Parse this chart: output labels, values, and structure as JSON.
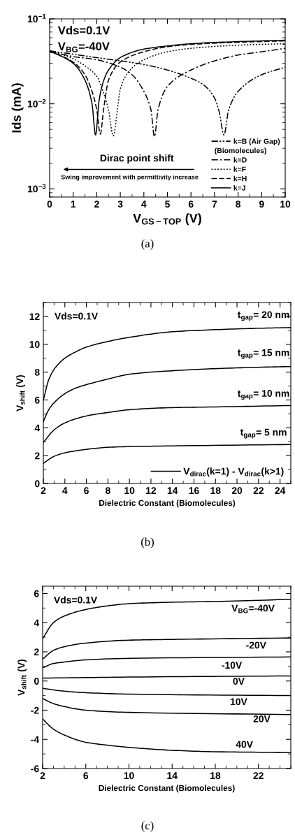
{
  "chart_data": [
    {
      "type": "line",
      "xlabel": "V$_{GS−TOP}$ (V)",
      "ylabel": "Ids (mA)",
      "log": "y",
      "xlim": [
        0,
        10
      ],
      "xticks": [
        0,
        1,
        2,
        3,
        4,
        5,
        6,
        7,
        8,
        9,
        10
      ],
      "ylim": [
        0.0008,
        0.1
      ],
      "yticks": [
        {
          "value": 0.001,
          "label": "10$^{−3}$"
        },
        {
          "value": 0.01,
          "label": "10$^{−2}$"
        },
        {
          "value": 0.1,
          "label": "10$^{−1}$"
        }
      ],
      "grid": false,
      "legend": "bottom right",
      "marker": "none",
      "annotations": [
        "(Biomolecules)",
        "Vds=0.1V",
        "V$_{BG}$=-40V",
        "Dirac point shift",
        "Swing improvement with permittivity increase",
        "(a)"
      ],
      "series": [
        {
          "name": "k=B (Air Gap)",
          "color": "#000000",
          "line_style": "dashdotdot",
          "x": [
            0,
            2,
            4,
            5,
            6,
            6.5,
            7,
            7.2,
            7.4,
            7.6,
            8,
            9,
            10
          ],
          "values": [
            0.042,
            0.035,
            0.029,
            0.025,
            0.02,
            0.017,
            0.0117,
            0.008,
            0.0043,
            0.0085,
            0.014,
            0.022,
            0.027
          ]
        },
        {
          "name": "k=D",
          "color": "#000000",
          "line_style": "dashdot",
          "x": [
            0,
            1,
            2,
            3,
            3.5,
            4,
            4.3,
            4.45,
            4.6,
            5,
            6,
            7,
            8,
            9,
            10
          ],
          "values": [
            0.042,
            0.036,
            0.033,
            0.027,
            0.022,
            0.014,
            0.0085,
            0.0041,
            0.0085,
            0.016,
            0.025,
            0.032,
            0.0375,
            0.041,
            0.045
          ]
        },
        {
          "name": "k=F",
          "color": "#000000",
          "line_style": "dotted",
          "x": [
            0,
            1,
            1.5,
            2,
            2.3,
            2.5,
            2.7,
            2.9,
            3,
            3.5,
            4,
            5,
            6,
            8,
            10
          ],
          "values": [
            0.042,
            0.034,
            0.028,
            0.021,
            0.0132,
            0.0085,
            0.0042,
            0.0096,
            0.015,
            0.0265,
            0.033,
            0.041,
            0.045,
            0.049,
            0.051
          ]
        },
        {
          "name": "k=H",
          "color": "#000000",
          "line_style": "dashed",
          "x": [
            0,
            1,
            1.5,
            1.8,
            2,
            2.15,
            2.3,
            2.5,
            3,
            4,
            5,
            6,
            8,
            10
          ],
          "values": [
            0.042,
            0.031,
            0.022,
            0.014,
            0.0085,
            0.0044,
            0.009,
            0.019,
            0.031,
            0.041,
            0.047,
            0.05,
            0.053,
            0.055
          ]
        },
        {
          "name": "k=J",
          "color": "#000000",
          "line_style": "solid",
          "x": [
            0,
            1,
            1.5,
            1.8,
            1.95,
            2.1,
            2.3,
            2.5,
            3,
            4,
            5,
            6,
            8,
            10
          ],
          "values": [
            0.042,
            0.03,
            0.019,
            0.01,
            0.0043,
            0.011,
            0.019,
            0.025,
            0.035,
            0.044,
            0.048,
            0.051,
            0.054,
            0.056
          ]
        }
      ]
    },
    {
      "type": "line",
      "xlabel": "Dielectric Constant (Biomolecules)",
      "ylabel": "V$_{shift}$ (V)",
      "xlim": [
        2,
        25
      ],
      "xticks": [
        2,
        4,
        6,
        8,
        10,
        12,
        14,
        16,
        18,
        20,
        22,
        24
      ],
      "ylim": [
        0,
        13
      ],
      "yticks": [
        0,
        2,
        4,
        6,
        8,
        10,
        12
      ],
      "grid": false,
      "legend": "bottom right",
      "marker": "none",
      "annotations": [
        "Vds=0.1V",
        "(b)",
        "t$_{gap}$= 20 nm",
        "t$_{gap}$= 15 nm",
        "t$_{gap}$= 10 nm",
        "t$_{gap}$= 5 nm"
      ],
      "series": [
        {
          "name": "V$_{dirac}$(k=1) - V$_{dirac}$(k>1)",
          "color": "#000000",
          "line_style": "solid",
          "x": [
            2,
            3,
            4,
            6,
            8,
            10,
            14,
            25
          ],
          "values": [
            1.45,
            1.95,
            2.2,
            2.45,
            2.6,
            2.65,
            2.7,
            2.8
          ]
        },
        {
          "color": "#000000",
          "line_style": "solid",
          "x": [
            2,
            3,
            4,
            6,
            8,
            10,
            14,
            18,
            25
          ],
          "values": [
            2.95,
            3.85,
            4.35,
            4.85,
            5.1,
            5.3,
            5.45,
            5.5,
            5.6
          ]
        },
        {
          "color": "#000000",
          "line_style": "solid",
          "x": [
            2,
            2.5,
            3,
            4,
            5,
            6,
            8,
            10,
            14,
            18,
            22,
            25
          ],
          "values": [
            4.45,
            5.3,
            5.8,
            6.45,
            6.85,
            7.1,
            7.5,
            7.85,
            8.1,
            8.25,
            8.35,
            8.4
          ]
        },
        {
          "color": "#000000",
          "line_style": "solid",
          "x": [
            2,
            2.5,
            3,
            4,
            5,
            6,
            8,
            10,
            14,
            18,
            22,
            25
          ],
          "values": [
            6.0,
            7.45,
            8.2,
            9.0,
            9.45,
            9.8,
            10.2,
            10.5,
            10.9,
            11.05,
            11.15,
            11.2
          ]
        }
      ]
    },
    {
      "type": "line",
      "xlabel": "Dielectric Constant (Biomolecules)",
      "ylabel": "V$_{shift}$ (V)",
      "xlim": [
        2,
        25
      ],
      "xticks": [
        2,
        6,
        10,
        14,
        18,
        22
      ],
      "ylim": [
        -6,
        6.5
      ],
      "yticks": [
        -6,
        -4,
        -2,
        0,
        2,
        4,
        6
      ],
      "grid": false,
      "marker": "none",
      "annotations": [
        "Vds=0.1V",
        "(c)",
        "V$_{BG}$=-40V",
        "-20V",
        "-10V",
        "0V",
        "10V",
        "20V",
        "40V"
      ],
      "series": [
        {
          "color": "#000000",
          "line_style": "solid",
          "x": [
            2,
            3,
            4,
            6,
            8,
            10,
            14,
            18,
            25
          ],
          "values": [
            2.9,
            4.0,
            4.45,
            4.9,
            5.15,
            5.3,
            5.4,
            5.45,
            5.6
          ]
        },
        {
          "color": "#000000",
          "line_style": "solid",
          "x": [
            2,
            3,
            4,
            6,
            10,
            14,
            25
          ],
          "values": [
            1.5,
            2.1,
            2.35,
            2.6,
            2.8,
            2.85,
            2.95
          ]
        },
        {
          "color": "#000000",
          "line_style": "solid",
          "x": [
            2,
            3,
            4,
            6,
            10,
            25
          ],
          "values": [
            0.9,
            1.2,
            1.3,
            1.45,
            1.55,
            1.65
          ]
        },
        {
          "color": "#000000",
          "line_style": "solid",
          "x": [
            2,
            10,
            25
          ],
          "values": [
            0.2,
            0.27,
            0.35
          ]
        },
        {
          "color": "#000000",
          "line_style": "solid",
          "x": [
            2,
            4,
            6,
            10,
            25
          ],
          "values": [
            -0.5,
            -0.7,
            -0.8,
            -0.9,
            -1.0
          ]
        },
        {
          "color": "#000000",
          "line_style": "solid",
          "x": [
            2,
            3,
            4,
            6,
            10,
            25
          ],
          "values": [
            -1.2,
            -1.55,
            -1.75,
            -2.0,
            -2.15,
            -2.3
          ]
        },
        {
          "color": "#000000",
          "line_style": "solid",
          "x": [
            2,
            3,
            4,
            6,
            8,
            10,
            14,
            18,
            25
          ],
          "values": [
            -2.6,
            -3.3,
            -3.7,
            -4.2,
            -4.4,
            -4.55,
            -4.75,
            -4.85,
            -4.9
          ]
        }
      ]
    }
  ]
}
